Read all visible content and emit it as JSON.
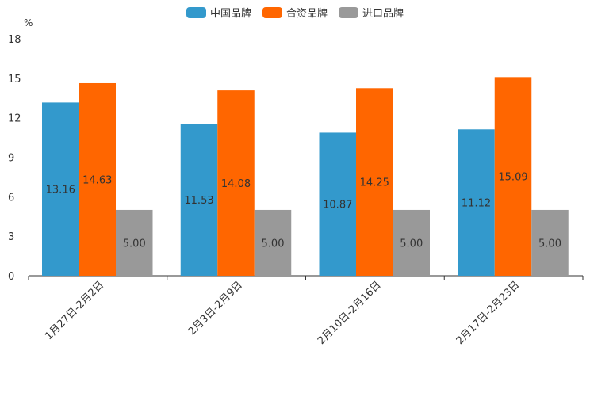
{
  "chart_data": {
    "type": "bar",
    "unit": "%",
    "categories": [
      "1月27日-2月2日",
      "2月3日-2月9日",
      "2月10日-2月16日",
      "2月17日-2月23日"
    ],
    "series": [
      {
        "name": "中国品牌",
        "color": "#3399cc",
        "values": [
          13.16,
          11.53,
          10.87,
          11.12
        ],
        "labels": [
          "13.16",
          "11.53",
          "10.87",
          "11.12"
        ]
      },
      {
        "name": "合资品牌",
        "color": "#ff6600",
        "values": [
          14.63,
          14.08,
          14.25,
          15.09
        ],
        "labels": [
          "14.63",
          "14.08",
          "14.25",
          "15.09"
        ]
      },
      {
        "name": "进口品牌",
        "color": "#999999",
        "values": [
          5.0,
          5.0,
          5.0,
          5.0
        ],
        "labels": [
          "5.00",
          "5.00",
          "5.00",
          "5.00"
        ]
      }
    ],
    "ylim": [
      0,
      18
    ],
    "yticks": [
      0,
      3,
      6,
      9,
      12,
      15,
      18
    ],
    "ytick_labels": [
      "0",
      "3",
      "6",
      "9",
      "12",
      "15",
      "18"
    ],
    "legend_position": "top-center"
  }
}
